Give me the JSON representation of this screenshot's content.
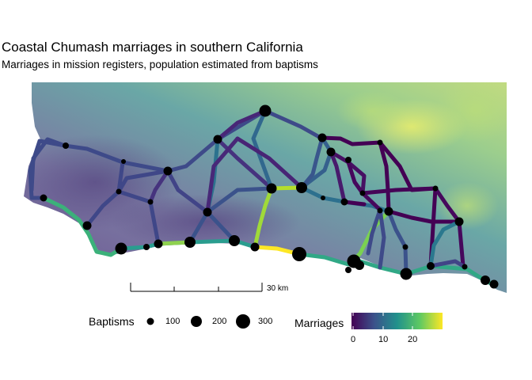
{
  "title": "Coastal Chumash marriages in southern California",
  "subtitle": "Marriages in mission registers, population estimated from baptisms",
  "scale_bar": {
    "label": "30 km"
  },
  "legend_size": {
    "title": "Baptisms",
    "items": [
      {
        "label": "100",
        "value": 100
      },
      {
        "label": "200",
        "value": 200
      },
      {
        "label": "300",
        "value": 300
      }
    ]
  },
  "legend_color": {
    "title": "Marriages",
    "ticks": [
      {
        "label": "0",
        "value": 0
      },
      {
        "label": "10",
        "value": 10
      },
      {
        "label": "20",
        "value": 20
      }
    ],
    "max": 30,
    "palette": [
      "#440154",
      "#3b528b",
      "#21918c",
      "#5ec962",
      "#fde725"
    ]
  },
  "colors": {
    "terrain_low": "#6a5a9a",
    "terrain_high": "#d8e67a",
    "point": "#000000"
  }
}
